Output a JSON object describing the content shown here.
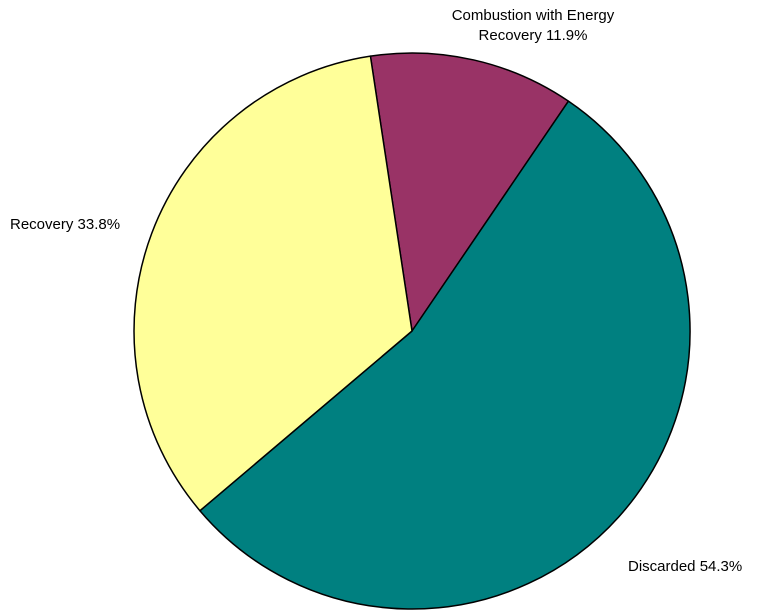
{
  "chart_data": {
    "type": "pie",
    "title": "",
    "slices": [
      {
        "name": "Combustion with Energy Recovery",
        "value": 11.9,
        "label_lines": [
          "Combustion with Energy",
          "Recovery 11.9%"
        ],
        "color": "#993366"
      },
      {
        "name": "Discarded",
        "value": 54.3,
        "label_lines": [
          "Discarded 54.3%"
        ],
        "color": "#008080"
      },
      {
        "name": "Recovery",
        "value": 33.8,
        "label_lines": [
          "Recovery 33.8%"
        ],
        "color": "#FFFF99"
      }
    ],
    "start_angle_deg_from_12_oclock": -8.6,
    "direction": "clockwise",
    "stroke_color": "#000000"
  }
}
